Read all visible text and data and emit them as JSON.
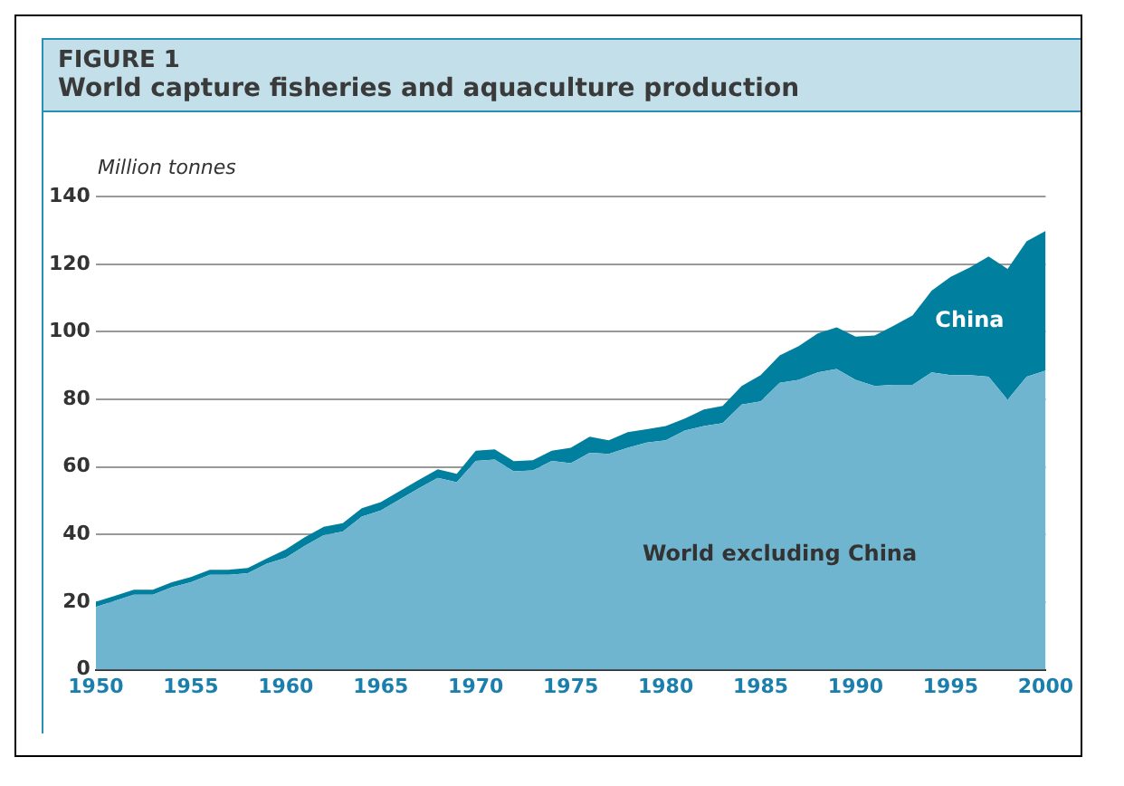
{
  "chart_data": {
    "type": "area",
    "title": "FIGURE 1",
    "subtitle": "World capture fisheries and aquaculture production",
    "ylabel": "Million tonnes",
    "x": [
      1950,
      1951,
      1952,
      1953,
      1954,
      1955,
      1956,
      1957,
      1958,
      1959,
      1960,
      1961,
      1962,
      1963,
      1964,
      1965,
      1966,
      1967,
      1968,
      1969,
      1970,
      1971,
      1972,
      1973,
      1974,
      1975,
      1976,
      1977,
      1978,
      1979,
      1980,
      1981,
      1982,
      1983,
      1984,
      1985,
      1986,
      1987,
      1988,
      1989,
      1990,
      1991,
      1992,
      1993,
      1994,
      1995,
      1996,
      1997,
      1998,
      1999,
      2000
    ],
    "series": [
      {
        "name": "World excluding China",
        "color": "#70b5d0",
        "values": [
          18.6,
          20.4,
          22.2,
          22.2,
          24.4,
          25.9,
          28.1,
          28.1,
          28.6,
          31.4,
          33.1,
          36.7,
          39.8,
          40.9,
          45.3,
          47.1,
          50.4,
          53.7,
          56.8,
          55.5,
          61.8,
          62.2,
          58.7,
          59,
          61.8,
          61.1,
          64.2,
          63.9,
          65.7,
          67.2,
          67.9,
          70.8,
          72.1,
          73,
          78.5,
          79.4,
          84.9,
          85.8,
          88,
          89,
          85.8,
          84,
          84.3,
          84.3,
          88,
          87.2,
          87.2,
          86.7,
          79.9,
          86.7,
          88.5
        ]
      },
      {
        "name": "China",
        "color": "#007f9f",
        "values": [
          1.5,
          1.5,
          1.5,
          1.5,
          1.5,
          1.5,
          1.5,
          1.5,
          1.5,
          1.5,
          2.5,
          2.5,
          2.5,
          2.5,
          2.5,
          2.5,
          2.5,
          2.5,
          2.5,
          2.5,
          3,
          3,
          3,
          3,
          3,
          4.6,
          4.8,
          4,
          4.6,
          4,
          4.2,
          3.5,
          4.9,
          5.1,
          5.5,
          7.8,
          8.1,
          10,
          11.5,
          12.3,
          12.8,
          14.9,
          17.5,
          20.6,
          24.2,
          29.1,
          31.8,
          35.6,
          38.7,
          40.1,
          41.4
        ]
      }
    ],
    "stacked": true,
    "xlim": [
      1950,
      2000
    ],
    "xticks": [
      1950,
      1955,
      1960,
      1965,
      1970,
      1975,
      1980,
      1985,
      1990,
      1995,
      2000
    ],
    "ylim": [
      0,
      140
    ],
    "yticks": [
      0,
      20,
      40,
      60,
      80,
      100,
      120,
      140
    ],
    "grid": "y"
  }
}
